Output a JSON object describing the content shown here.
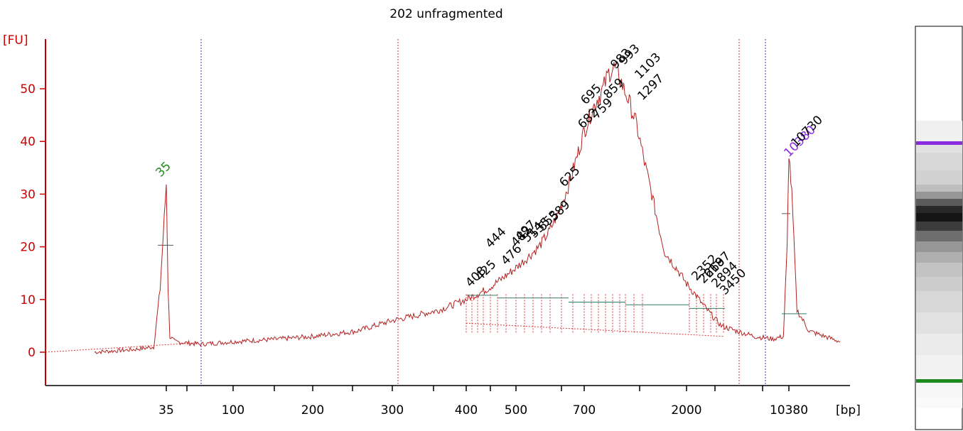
{
  "colors": {
    "axis": "#cc0000",
    "trace": "#b22222",
    "marker_peak": "#1e8a1e",
    "upper_marker": "#8a2be2",
    "baseline": "#2e7d6b",
    "dotted_blue": "#3333cc",
    "dotted_red": "#d43a3a"
  },
  "chart_data": {
    "type": "line",
    "title": "202 unfragmented",
    "ylabel": "[FU]",
    "xlabel": "[bp]",
    "ylim": [
      -6,
      60
    ],
    "yticks": [
      "0",
      "10",
      "20",
      "30",
      "40",
      "50"
    ],
    "xticks": [
      "35",
      "100",
      "200",
      "300",
      "400",
      "500",
      "700",
      "2000",
      "10380"
    ],
    "series": [
      {
        "x_bp": [
          25,
          30,
          33,
          34,
          35,
          36,
          37,
          40,
          60,
          100,
          150,
          200,
          250,
          300,
          330,
          360,
          380,
          400,
          420,
          440,
          470,
          500,
          530,
          560,
          590,
          620,
          650,
          680,
          700,
          730,
          760,
          800,
          850,
          900,
          950,
          990,
          1050,
          1100,
          1200,
          1300,
          1400,
          1500,
          1600,
          1800,
          2000,
          2300,
          2600,
          3000,
          3500,
          4500,
          6000,
          8000,
          9500,
          10100,
          10380,
          10600,
          11000,
          12000,
          15000
        ],
        "values": [
          0,
          0.5,
          1,
          12,
          32,
          12,
          3,
          2,
          1.5,
          2,
          2.5,
          3,
          4,
          6,
          7,
          8,
          9,
          10,
          11,
          12,
          14,
          16,
          18,
          20,
          23,
          27,
          32,
          38,
          42,
          44,
          46,
          48,
          50,
          53,
          54,
          53,
          50,
          48,
          43,
          36,
          30,
          24,
          19,
          16,
          13,
          11,
          9,
          7,
          5,
          4,
          3,
          2.5,
          3,
          20,
          38,
          30,
          8,
          4,
          2
        ]
      }
    ],
    "peak_labels": [
      "35",
      "408",
      "425",
      "444",
      "476",
      "482",
      "497",
      "514",
      "535",
      "553",
      "589",
      "625",
      "682",
      "695",
      "759",
      "859",
      "983",
      "993",
      "1103",
      "1297",
      "2352",
      "2618",
      "2697",
      "2894",
      "3450",
      "10380",
      "10730"
    ],
    "marker_labels": {
      "lower": "35",
      "upper": "10380"
    }
  }
}
